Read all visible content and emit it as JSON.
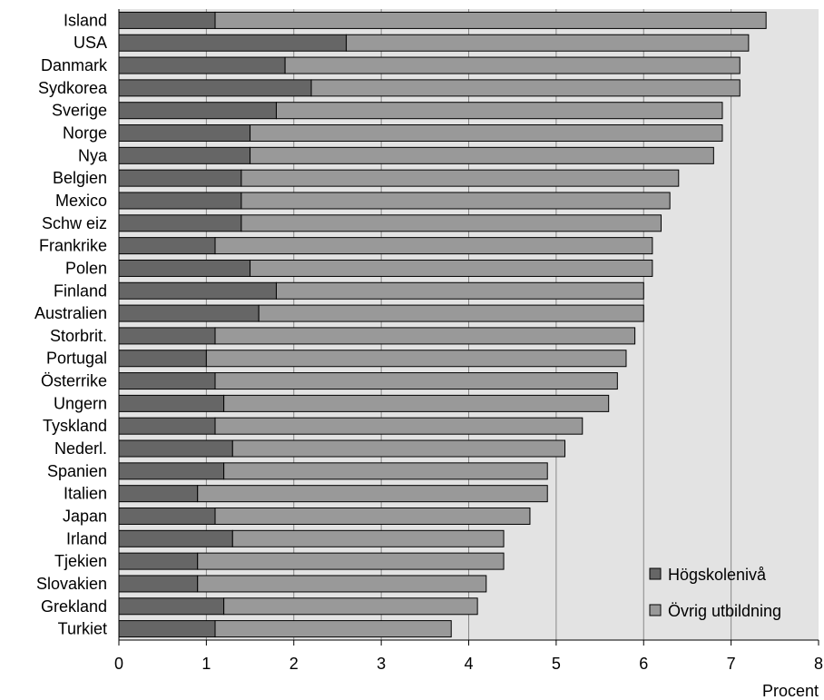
{
  "chart_data": {
    "type": "bar",
    "orientation": "horizontal",
    "stacked": true,
    "categories": [
      "Island",
      "USA",
      "Danmark",
      "Sydkorea",
      "Sverige",
      "Norge",
      "Nya",
      "Belgien",
      "Mexico",
      "Schw eiz",
      "Frankrike",
      "Polen",
      "Finland",
      "Australien",
      "Storbrit.",
      "Portugal",
      "Österrike",
      "Ungern",
      "Tyskland",
      "Nederl.",
      "Spanien",
      "Italien",
      "Japan",
      "Irland",
      "Tjekien",
      "Slovakien",
      "Grekland",
      "Turkiet"
    ],
    "series": [
      {
        "name": "Högskolenivå",
        "color": "#666666",
        "values": [
          1.1,
          2.6,
          1.9,
          2.2,
          1.8,
          1.5,
          1.5,
          1.4,
          1.4,
          1.4,
          1.1,
          1.5,
          1.8,
          1.6,
          1.1,
          1.0,
          1.1,
          1.2,
          1.1,
          1.3,
          1.2,
          0.9,
          1.1,
          1.3,
          0.9,
          0.9,
          1.2,
          1.1
        ]
      },
      {
        "name": "Övrig utbildning",
        "color": "#999999",
        "values": [
          6.3,
          4.6,
          5.2,
          4.9,
          5.1,
          5.4,
          5.3,
          5.0,
          4.9,
          4.8,
          5.0,
          4.6,
          4.2,
          4.4,
          4.8,
          4.8,
          4.6,
          4.4,
          4.2,
          3.8,
          3.7,
          4.0,
          3.6,
          3.1,
          3.5,
          3.3,
          2.9,
          2.7
        ]
      }
    ],
    "totals": [
      7.4,
      7.2,
      7.1,
      7.1,
      6.9,
      6.9,
      6.8,
      6.4,
      6.3,
      6.2,
      6.1,
      6.1,
      6.0,
      6.0,
      5.9,
      5.8,
      5.7,
      5.6,
      5.3,
      5.1,
      4.9,
      4.9,
      4.7,
      4.4,
      4.4,
      4.2,
      4.1,
      3.8
    ],
    "xlim": [
      0,
      8
    ],
    "xticks": [
      "0",
      "1",
      "2",
      "3",
      "4",
      "5",
      "6",
      "7",
      "8"
    ],
    "xlabel": "Procent",
    "title": "",
    "grid": "vertical",
    "legend_position": "bottom-right",
    "plot_background": "#e3e3e3"
  }
}
